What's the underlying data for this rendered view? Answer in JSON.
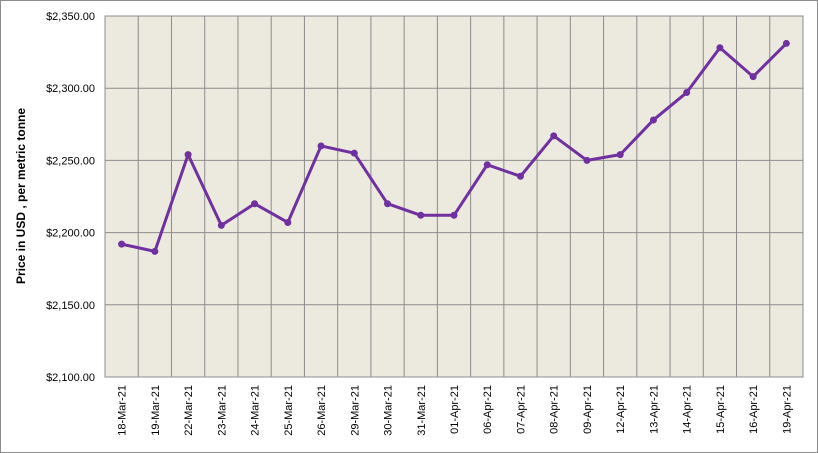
{
  "chart_data": {
    "type": "line",
    "y_label": "Price in USD , per metric tonne",
    "categories": [
      "18-Mar-21",
      "19-Mar-21",
      "22-Mar-21",
      "23-Mar-21",
      "24-Mar-21",
      "25-Mar-21",
      "26-Mar-21",
      "29-Mar-21",
      "30-Mar-21",
      "31-Mar-21",
      "01-Apr-21",
      "06-Apr-21",
      "07-Apr-21",
      "08-Apr-21",
      "09-Apr-21",
      "12-Apr-21",
      "13-Apr-21",
      "14-Apr-21",
      "15-Apr-21",
      "16-Apr-21",
      "19-Apr-21"
    ],
    "values": [
      2192,
      2187,
      2254,
      2205,
      2220,
      2207,
      2260,
      2255,
      2220,
      2212,
      2212,
      2247,
      2239,
      2267,
      2250,
      2254,
      2278,
      2297,
      2328,
      2308,
      2331
    ],
    "color": "#7030a0",
    "ylim": [
      2100,
      2350
    ],
    "yticks": [
      {
        "value": 2100,
        "label": "$2,100.00"
      },
      {
        "value": 2150,
        "label": "$2,150.00"
      },
      {
        "value": 2200,
        "label": "$2,200.00"
      },
      {
        "value": 2250,
        "label": "$2,250.00"
      },
      {
        "value": 2300,
        "label": "$2,300.00"
      },
      {
        "value": 2350,
        "label": "$2,350.00"
      }
    ],
    "grid": true
  }
}
